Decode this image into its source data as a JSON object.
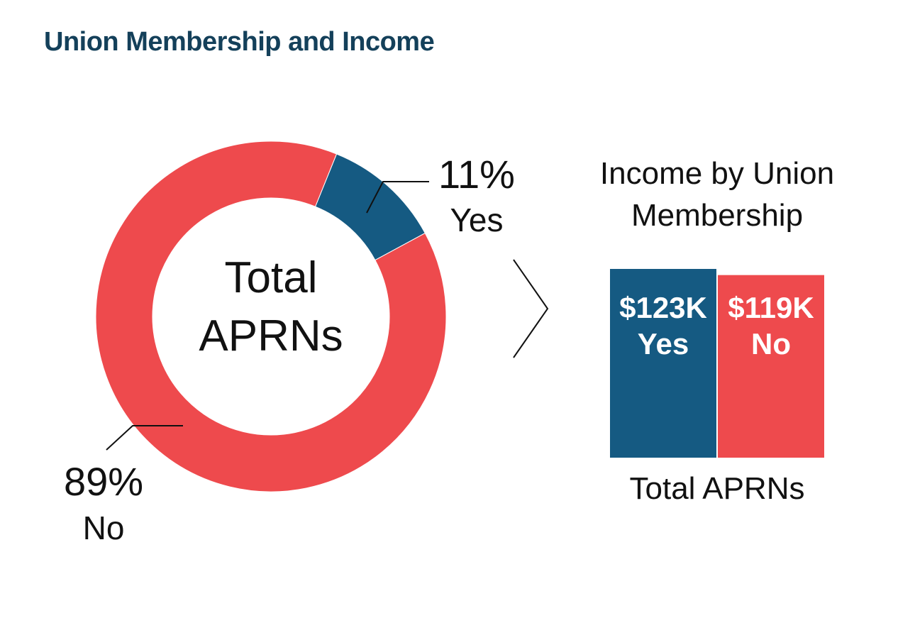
{
  "title": "Union Membership and Income",
  "chart_data": [
    {
      "type": "pie",
      "center_label": [
        "Total",
        "APRNs"
      ],
      "slices": [
        {
          "name": "Yes",
          "value": 11,
          "label": "11%",
          "color": "#155a82"
        },
        {
          "name": "No",
          "value": 89,
          "label": "89%",
          "color": "#ee4a4d"
        }
      ]
    },
    {
      "type": "bar",
      "title": [
        "Income by Union",
        "Membership"
      ],
      "xlabel": "Total APRNs",
      "categories": [
        "Yes",
        "No"
      ],
      "values": [
        123,
        119
      ],
      "value_labels": [
        "$123K",
        "$119K"
      ],
      "colors": [
        "#155a82",
        "#ee4a4d"
      ]
    }
  ]
}
